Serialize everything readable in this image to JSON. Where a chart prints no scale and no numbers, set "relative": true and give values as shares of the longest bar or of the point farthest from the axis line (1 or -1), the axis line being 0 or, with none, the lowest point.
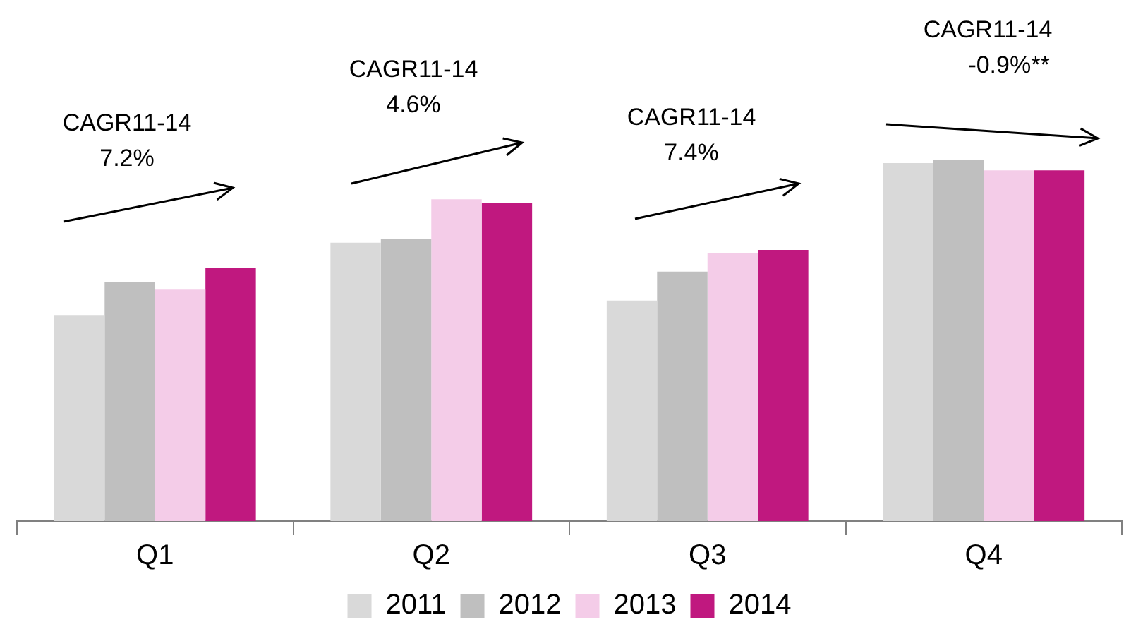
{
  "chart_data": {
    "type": "bar",
    "relative": true,
    "categories": [
      "Q1",
      "Q2",
      "Q3",
      "Q4"
    ],
    "series": [
      {
        "name": "2011",
        "color": "#d9d9d9",
        "values": [
          0.57,
          0.77,
          0.61,
          0.99
        ]
      },
      {
        "name": "2012",
        "color": "#bfbfbf",
        "values": [
          0.66,
          0.78,
          0.69,
          1
        ]
      },
      {
        "name": "2013",
        "color": "#f4cce8",
        "values": [
          0.64,
          0.89,
          0.74,
          0.97
        ]
      },
      {
        "name": "2014",
        "color": "#c0187f",
        "values": [
          0.7,
          0.88,
          0.75,
          0.97
        ]
      }
    ],
    "annotations": [
      "CAGR11-14\n7.2%",
      "CAGR11-14\n4.6%",
      "CAGR11-14\n7.4%",
      "CAGR11-14\n-0.9%**"
    ],
    "legend": "bottom",
    "grid": false
  }
}
